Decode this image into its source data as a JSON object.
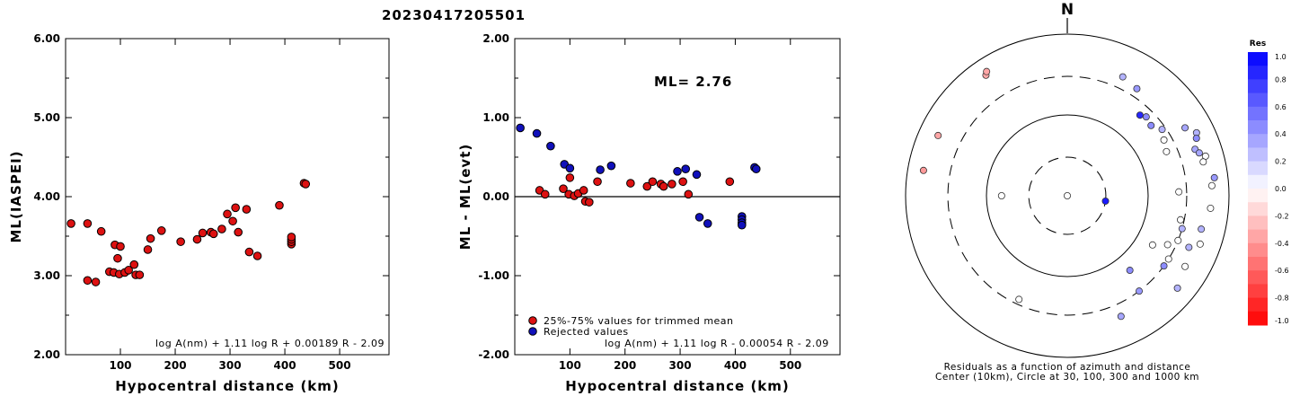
{
  "title": "20230417205501",
  "chart_data": [
    {
      "type": "scatter",
      "xlabel": "Hypocentral distance (km)",
      "ylabel": "ML(IASPEI)",
      "xlim": [
        0,
        590
      ],
      "ylim": [
        2.0,
        6.0
      ],
      "xticks": [
        "100",
        "200",
        "300",
        "400",
        "500"
      ],
      "yticks": [
        "2.00",
        "3.00",
        "4.00",
        "5.00",
        "6.00"
      ],
      "formula": "log A(nm) + 1.11 log R + 0.00189 R - 2.09",
      "series": [
        {
          "color": "#dd1111",
          "points": [
            [
              10,
              3.66
            ],
            [
              40,
              3.66
            ],
            [
              40,
              2.94
            ],
            [
              55,
              2.92
            ],
            [
              65,
              3.56
            ],
            [
              80,
              3.05
            ],
            [
              88,
              3.04
            ],
            [
              90,
              3.39
            ],
            [
              95,
              3.22
            ],
            [
              98,
              3.02
            ],
            [
              100,
              3.37
            ],
            [
              108,
              3.04
            ],
            [
              115,
              3.07
            ],
            [
              125,
              3.14
            ],
            [
              128,
              3.01
            ],
            [
              135,
              3.01
            ],
            [
              150,
              3.33
            ],
            [
              155,
              3.47
            ],
            [
              175,
              3.57
            ],
            [
              210,
              3.43
            ],
            [
              240,
              3.46
            ],
            [
              250,
              3.54
            ],
            [
              265,
              3.55
            ],
            [
              270,
              3.53
            ],
            [
              285,
              3.59
            ],
            [
              295,
              3.78
            ],
            [
              305,
              3.69
            ],
            [
              310,
              3.86
            ],
            [
              315,
              3.55
            ],
            [
              330,
              3.84
            ],
            [
              335,
              3.3
            ],
            [
              350,
              3.25
            ],
            [
              390,
              3.89
            ],
            [
              412,
              3.4
            ],
            [
              412,
              3.43
            ],
            [
              412,
              3.46
            ],
            [
              412,
              3.49
            ],
            [
              435,
              4.17
            ],
            [
              438,
              4.16
            ]
          ]
        }
      ]
    },
    {
      "type": "scatter",
      "xlabel": "Hypocentral distance (km)",
      "ylabel": "ML - ML(evt)",
      "xlim": [
        0,
        590
      ],
      "ylim": [
        -2.0,
        2.0
      ],
      "xticks": [
        "100",
        "200",
        "300",
        "400",
        "500"
      ],
      "yticks": [
        "-2.00",
        "-1.00",
        "0.00",
        "1.00",
        "2.00"
      ],
      "annotation": "ML= 2.76",
      "formula": "log A(nm) + 1.11 log R - 0.00054 R - 2.09",
      "legend_position": "bottom-left",
      "series": [
        {
          "name": "25%-75% values for trimmed mean",
          "color": "#dd1111",
          "points": [
            [
              45,
              0.08
            ],
            [
              55,
              0.03
            ],
            [
              88,
              0.1
            ],
            [
              98,
              0.03
            ],
            [
              100,
              0.24
            ],
            [
              108,
              0.01
            ],
            [
              115,
              0.04
            ],
            [
              125,
              0.08
            ],
            [
              128,
              -0.06
            ],
            [
              135,
              -0.07
            ],
            [
              150,
              0.19
            ],
            [
              210,
              0.17
            ],
            [
              240,
              0.13
            ],
            [
              250,
              0.19
            ],
            [
              265,
              0.16
            ],
            [
              270,
              0.13
            ],
            [
              285,
              0.16
            ],
            [
              305,
              0.19
            ],
            [
              315,
              0.03
            ],
            [
              390,
              0.19
            ]
          ]
        },
        {
          "name": "Rejected values",
          "color": "#1010bb",
          "points": [
            [
              10,
              0.87
            ],
            [
              40,
              0.8
            ],
            [
              65,
              0.64
            ],
            [
              90,
              0.41
            ],
            [
              100,
              0.36
            ],
            [
              155,
              0.34
            ],
            [
              175,
              0.39
            ],
            [
              295,
              0.32
            ],
            [
              310,
              0.35
            ],
            [
              330,
              0.28
            ],
            [
              335,
              -0.26
            ],
            [
              350,
              -0.34
            ],
            [
              412,
              -0.25
            ],
            [
              412,
              -0.29
            ],
            [
              412,
              -0.33
            ],
            [
              412,
              -0.36
            ],
            [
              435,
              0.37
            ],
            [
              438,
              0.35
            ]
          ]
        }
      ]
    },
    {
      "type": "scatter",
      "title": "N",
      "caption": [
        "Residuals as a function of azimuth and distance",
        "Center (10km), Circle at 30, 100, 300 and 1000 km"
      ],
      "rings_km": [
        30,
        100,
        300,
        1000
      ],
      "colorbar": {
        "title": "Res",
        "range": [
          -1.0,
          1.0
        ],
        "ticks": [
          "1.0",
          "0.8",
          "0.6",
          "0.4",
          "0.2",
          "0.0",
          "-0.2",
          "-0.4",
          "-0.6",
          "-0.8",
          "-1.0"
        ],
        "positive_color": "#0000ff",
        "negative_color": "#ff0000"
      },
      "points": [
        {
          "az": 90,
          "dist_km": 10,
          "res": 0.0
        },
        {
          "az": 98,
          "dist_km": 30,
          "res": 0.9
        },
        {
          "az": 270,
          "dist_km": 65,
          "res": 0.0
        },
        {
          "az": 120,
          "dist_km": 165,
          "res": 0.0
        },
        {
          "az": 140,
          "dist_km": 160,
          "res": 0.45
        },
        {
          "az": 88,
          "dist_km": 240,
          "res": 0.0
        },
        {
          "az": 66,
          "dist_km": 220,
          "res": 0.0
        },
        {
          "az": 60,
          "dist_km": 240,
          "res": 0.0
        },
        {
          "az": 50,
          "dist_km": 225,
          "res": 0.45
        },
        {
          "az": 45,
          "dist_km": 240,
          "res": 0.45
        },
        {
          "az": 42,
          "dist_km": 220,
          "res": 0.85
        },
        {
          "az": 55,
          "dist_km": 270,
          "res": 0.3
        },
        {
          "az": 102,
          "dist_km": 270,
          "res": 0.0
        },
        {
          "az": 106,
          "dist_km": 300,
          "res": 0.3
        },
        {
          "az": 112,
          "dist_km": 300,
          "res": 0.0
        },
        {
          "az": 116,
          "dist_km": 240,
          "res": 0.0
        },
        {
          "az": 122,
          "dist_km": 300,
          "res": 0.0
        },
        {
          "az": 126,
          "dist_km": 300,
          "res": 0.45
        },
        {
          "az": 143,
          "dist_km": 300,
          "res": 0.4
        },
        {
          "az": 156,
          "dist_km": 430,
          "res": 0.35
        },
        {
          "az": 205,
          "dist_km": 260,
          "res": 0.0
        },
        {
          "az": 25,
          "dist_km": 420,
          "res": 0.3
        },
        {
          "az": 33,
          "dist_km": 380,
          "res": 0.4
        },
        {
          "az": 60,
          "dist_km": 480,
          "res": 0.35
        },
        {
          "az": 64,
          "dist_km": 600,
          "res": 0.3
        },
        {
          "az": 66,
          "dist_km": 560,
          "res": 0.45
        },
        {
          "az": 70,
          "dist_km": 480,
          "res": 0.35
        },
        {
          "az": 72,
          "dist_km": 520,
          "res": 0.35
        },
        {
          "az": 74,
          "dist_km": 600,
          "res": 0.0
        },
        {
          "az": 76,
          "dist_km": 540,
          "res": 0.0
        },
        {
          "az": 83,
          "dist_km": 680,
          "res": 0.4
        },
        {
          "az": 86,
          "dist_km": 620,
          "res": 0.0
        },
        {
          "az": 95,
          "dist_km": 600,
          "res": 0.0
        },
        {
          "az": 104,
          "dist_km": 510,
          "res": 0.3
        },
        {
          "az": 110,
          "dist_km": 560,
          "res": 0.0
        },
        {
          "az": 113,
          "dist_km": 430,
          "res": 0.3
        },
        {
          "az": 121,
          "dist_km": 500,
          "res": 0.0
        },
        {
          "az": 130,
          "dist_km": 600,
          "res": 0.3
        },
        {
          "az": 295,
          "dist_km": 580,
          "res": -0.35
        },
        {
          "az": 326,
          "dist_km": 630,
          "res": -0.35
        },
        {
          "az": 327,
          "dist_km": 680,
          "res": -0.35
        },
        {
          "az": 280,
          "dist_km": 640,
          "res": -0.4
        }
      ]
    }
  ]
}
